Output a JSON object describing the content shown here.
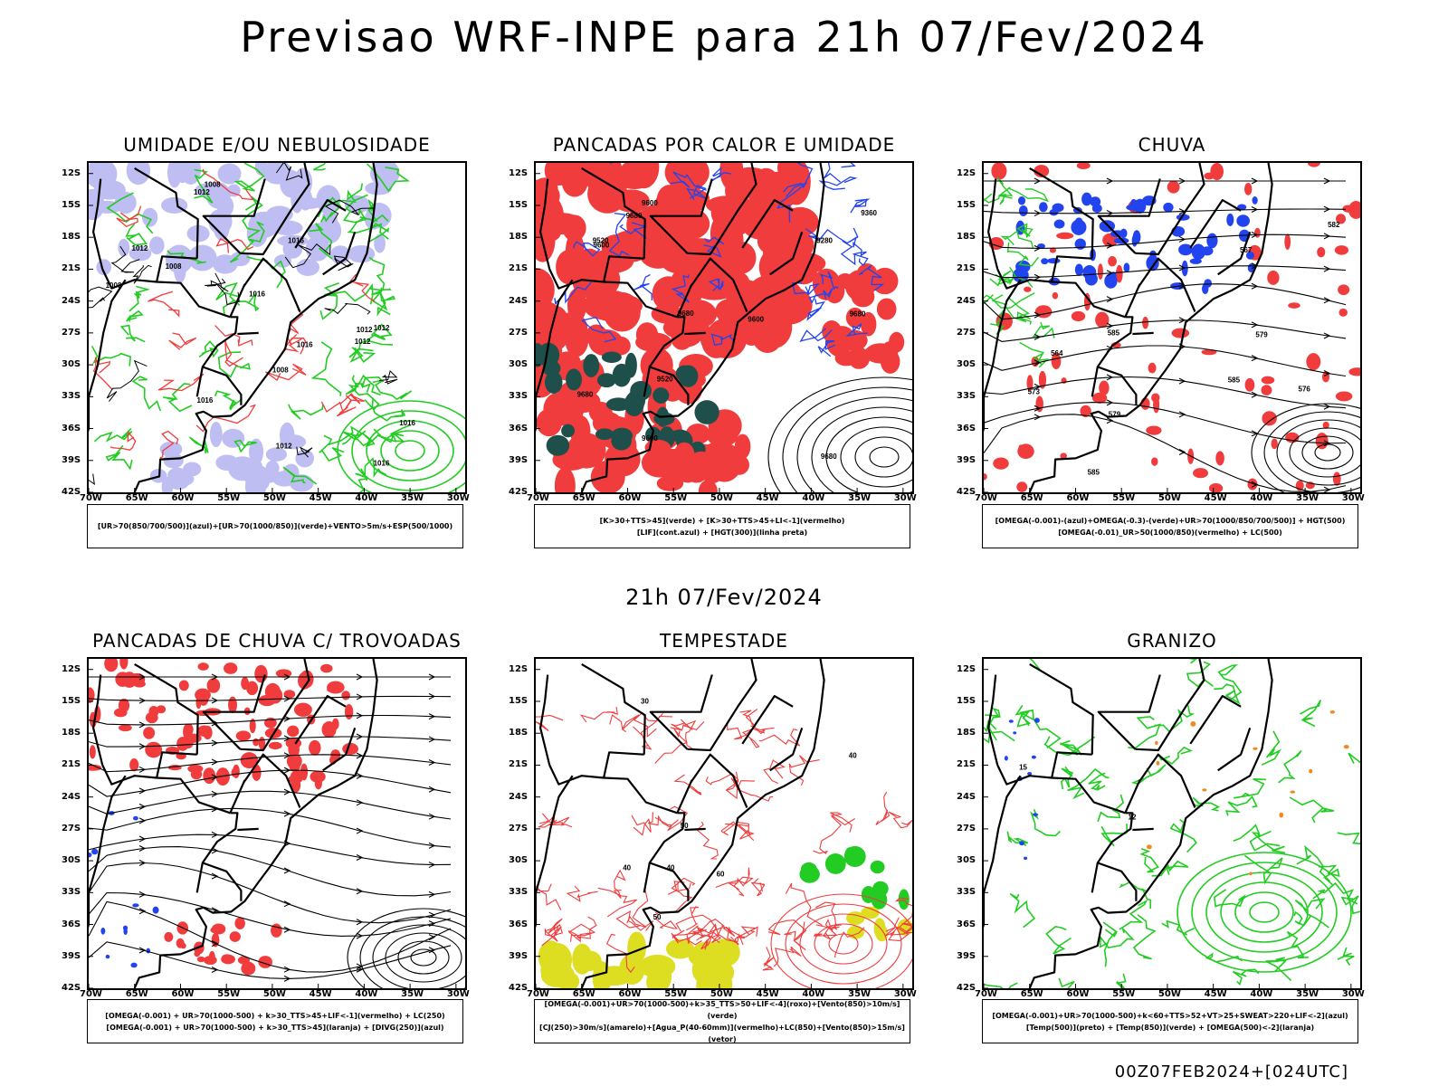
{
  "main_title": "Previsao WRF-INPE  para 21h 07/Fev/2024",
  "mid_date": "21h 07/Fev/2024",
  "footer_run": "00Z07FEB2024+[024UTC]",
  "axes": {
    "lat_labels": [
      "12S",
      "15S",
      "18S",
      "21S",
      "24S",
      "27S",
      "30S",
      "33S",
      "36S",
      "39S",
      "42S"
    ],
    "lon_labels": [
      "70W",
      "65W",
      "60W",
      "55W",
      "50W",
      "45W",
      "40W",
      "35W",
      "30W"
    ]
  },
  "colors": {
    "red": "#f03c3c",
    "green": "#22cc22",
    "blue": "#2244ee",
    "lavender": "#b7b7f2",
    "darkteal": "#1f4f4a",
    "yellow": "#dddd22",
    "orange": "#f08a20",
    "purple": "#8822cc",
    "black": "#000000"
  },
  "panels": [
    {
      "title": "UMIDADE E/OU NEBULOSIDADE",
      "legend": [
        "[UR>70(850/700/500)](azul)+[UR>70(1000/850)](verde)+VENTO>5m/s+ESP(500/1000)"
      ],
      "contour_labels": [
        "1008",
        "1012",
        "1016",
        "1012",
        "1016",
        "1016",
        "1008",
        "1016",
        "1016",
        "1012",
        "1008",
        "1012",
        "1016",
        "1012",
        "1008",
        "1012"
      ]
    },
    {
      "title": "PANCADAS POR CALOR E UMIDADE",
      "legend": [
        "[K>30+TTS>45](verde) + [K>30+TTS>45+LI<-1](vermelho)",
        "[LIF](cont.azul) + [HGT(300)](linha preta)"
      ],
      "contour_labels": [
        "9680",
        "9680",
        "9680",
        "9680",
        "9680",
        "9600",
        "9600",
        "9600",
        "9520",
        "9360",
        "9280",
        "9600",
        "9520"
      ]
    },
    {
      "title": "CHUVA",
      "legend": [
        "[OMEGA(-0.001)-(azul)+OMEGA(-0.3)-(verde)+UR>70(1000/850/700/500)] + HGT(500)",
        "[OMEGA(-0.01)_UR>50(1000/850)(vermelho) + LC(500)"
      ],
      "contour_labels": [
        "585",
        "585",
        "585",
        "579",
        "576",
        "567",
        "564",
        "582",
        "579",
        "573"
      ]
    },
    {
      "title": "PANCADAS DE CHUVA C/ TROVOADAS",
      "legend": [
        "[OMEGA(-0.001) + UR>70(1000-500) + k>30_TTS>45+LIF<-1](vermelho) + LC(250)",
        "[OMEGA(-0.001) + UR>70(1000-500) + k>30_TTS>45](laranja) + [DIVG(250)](azul)"
      ],
      "contour_labels": []
    },
    {
      "title": "TEMPESTADE",
      "legend": [
        "[OMEGA(-0.001)+UR>70(1000-500)+k>35_TTS>50+LIF<-4](roxo)+[Vento(850)>10m/s](verde)",
        "[CJ(250)>30m/s](amarelo)+[Agua_P(40-60mm)](vermelho)+LC(850)+[Vento(850)>15m/s](vetor)"
      ],
      "contour_labels": [
        "40",
        "30",
        "40",
        "50",
        "60",
        "40",
        "50"
      ]
    },
    {
      "title": "GRANIZO",
      "legend": [
        "[OMEGA(-0.001)+UR>70(1000-500)+k<60+TTS>52+VT>25+SWEAT>220+LIF<-2](azul)",
        "[Temp(500)](preto) + [Temp(850)](verde) + [OMEGA(500)<-2](laranja)"
      ],
      "contour_labels": [
        "12",
        "15"
      ]
    }
  ]
}
